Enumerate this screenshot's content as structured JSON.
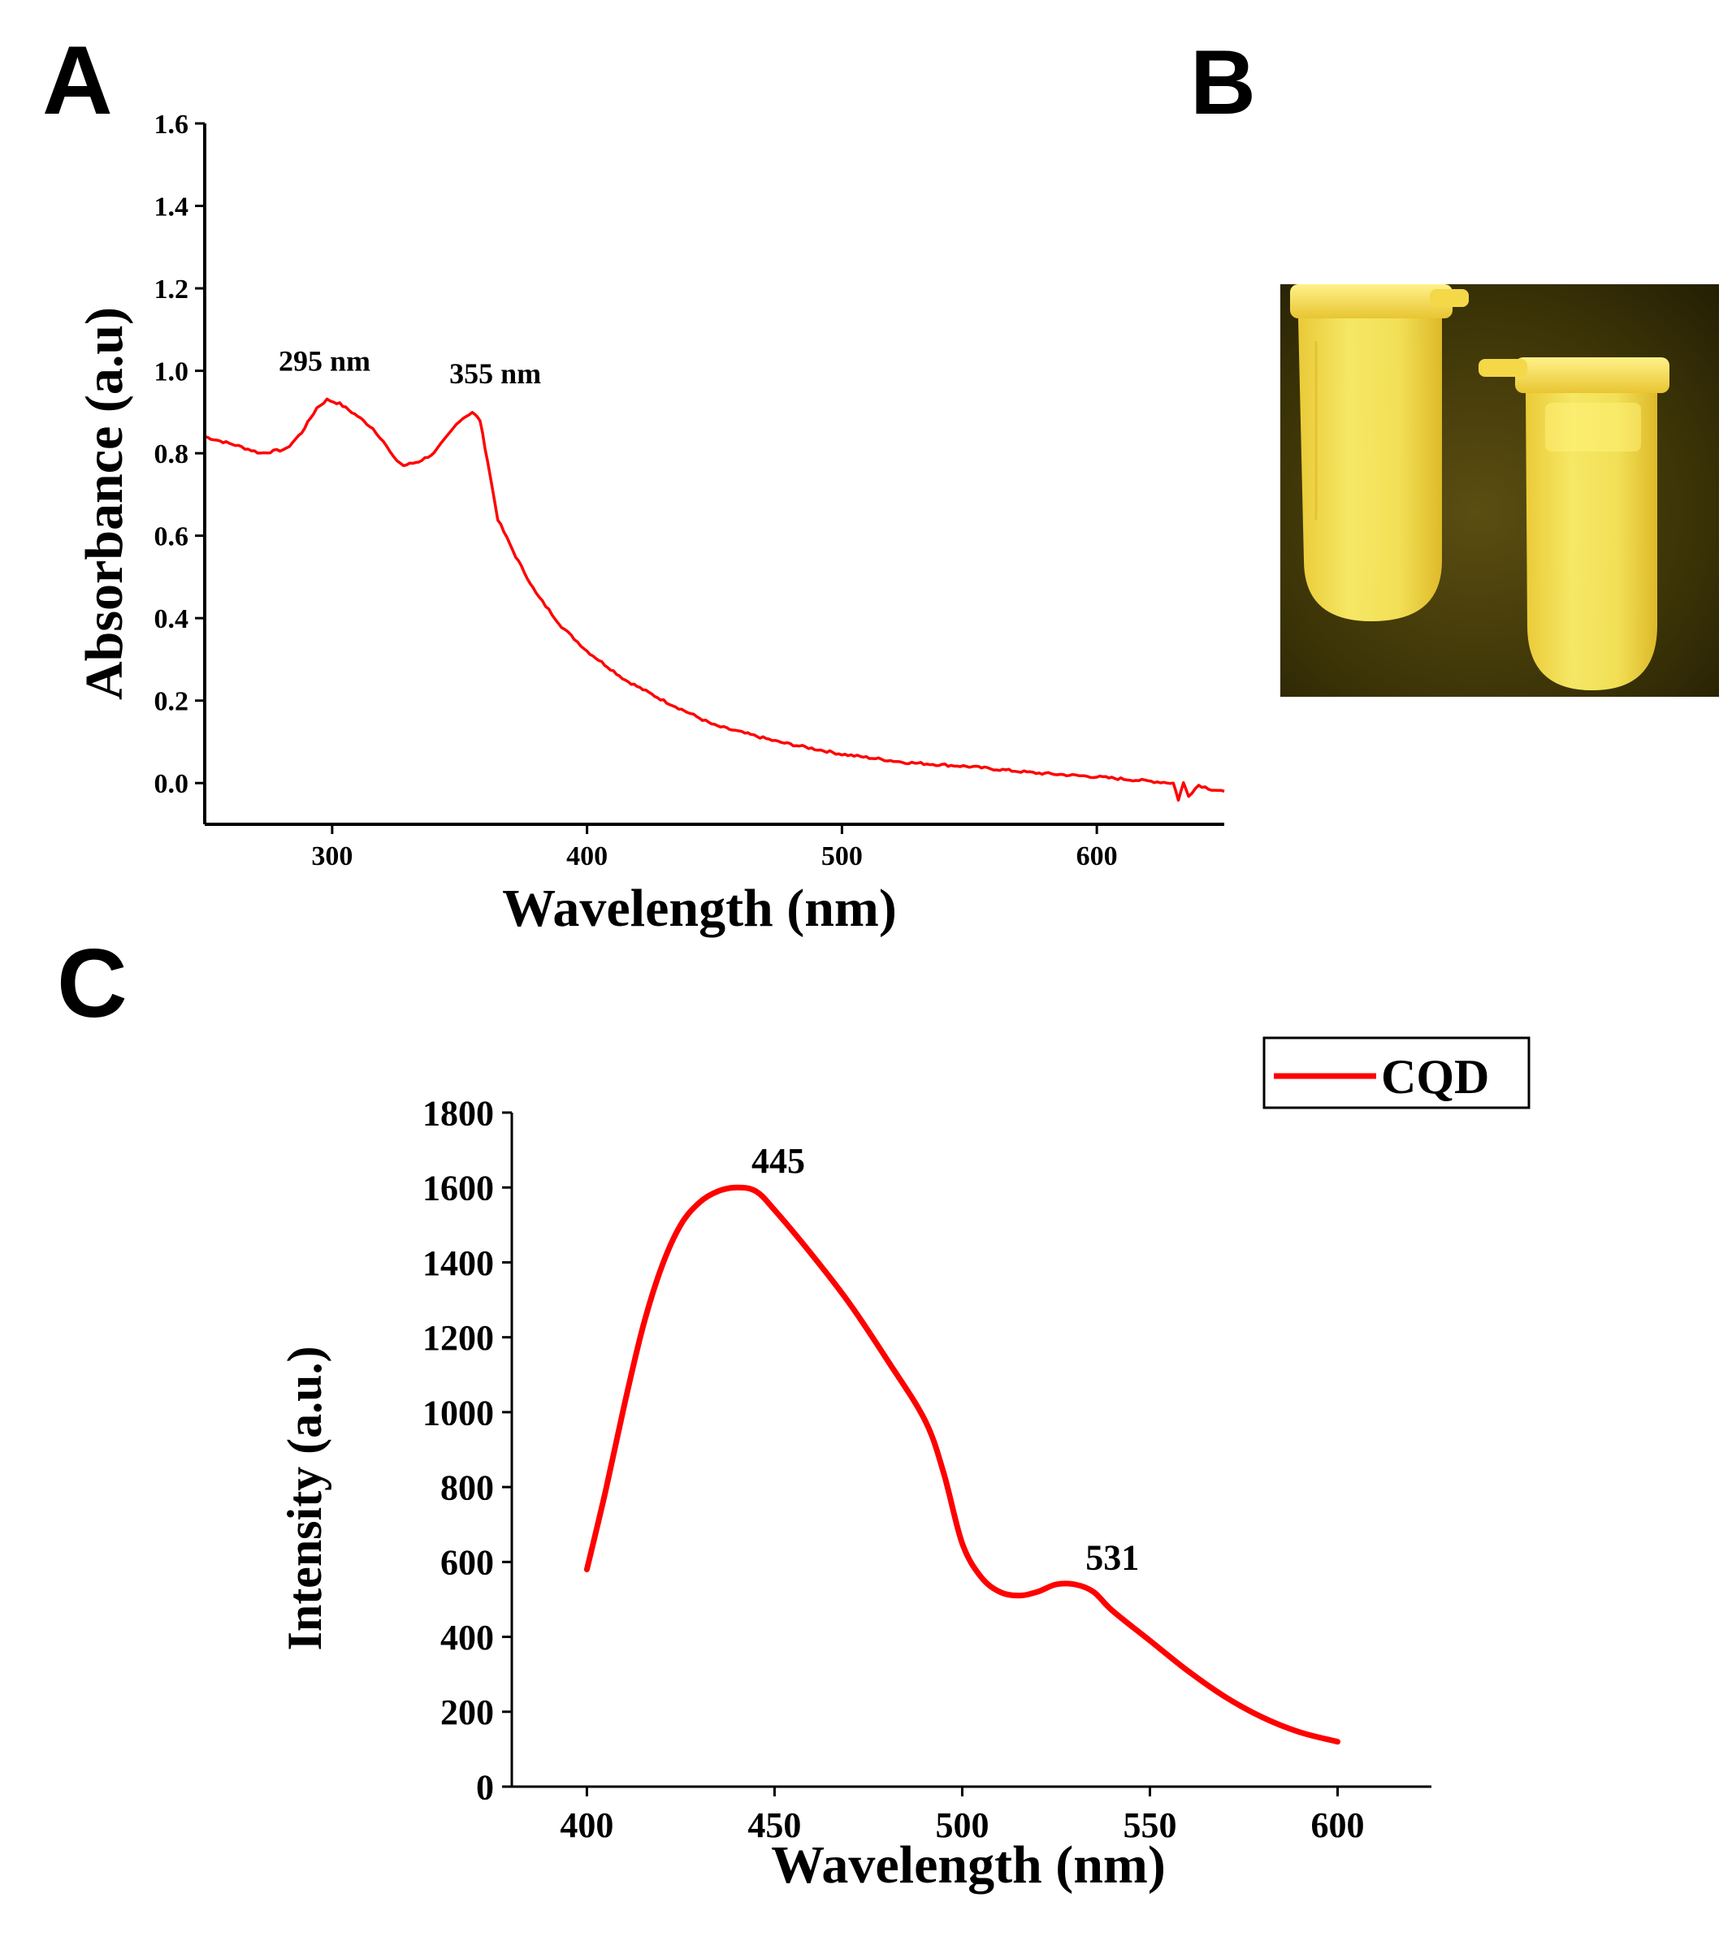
{
  "panels": {
    "a": "A",
    "b": "B",
    "c": "C"
  },
  "chart_data": [
    {
      "panel": "A",
      "type": "line",
      "xlabel": "Wavelength (nm)",
      "ylabel": "Absorbance (a.u)",
      "xlim": [
        250,
        650
      ],
      "ylim": [
        -0.1,
        1.6
      ],
      "xticks": [
        300,
        400,
        500,
        600
      ],
      "yticks": [
        0.0,
        0.2,
        0.4,
        0.6,
        0.8,
        1.0,
        1.2,
        1.4,
        1.6
      ],
      "ytick_labels": [
        "0.0",
        "0.2",
        "0.4",
        "0.6",
        "0.8",
        "1.0",
        "1.2",
        "1.4",
        "1.6"
      ],
      "grid": false,
      "color": "#ff0000",
      "annotations": [
        {
          "text": "295 nm",
          "x": 297,
          "y": 1.0
        },
        {
          "text": "355 nm",
          "x": 364,
          "y": 0.97
        }
      ],
      "series": [
        {
          "x": [
            250,
            262,
            272,
            282,
            288,
            294,
            298,
            303,
            310,
            316,
            320,
            324,
            328,
            334,
            340,
            345,
            350,
            355,
            358,
            361,
            365,
            372,
            380,
            390,
            400,
            415,
            430,
            450,
            475,
            500,
            525,
            550,
            575,
            600,
            620,
            630,
            632,
            634,
            636,
            640,
            645,
            650
          ],
          "y": [
            0.84,
            0.82,
            0.8,
            0.81,
            0.85,
            0.91,
            0.93,
            0.92,
            0.89,
            0.86,
            0.83,
            0.79,
            0.77,
            0.78,
            0.8,
            0.84,
            0.88,
            0.9,
            0.88,
            0.78,
            0.64,
            0.55,
            0.46,
            0.38,
            0.32,
            0.25,
            0.2,
            0.14,
            0.1,
            0.07,
            0.05,
            0.04,
            0.025,
            0.015,
            0.005,
            0.0,
            -0.04,
            0.0,
            -0.03,
            -0.005,
            -0.015,
            -0.02
          ]
        }
      ]
    },
    {
      "panel": "C",
      "type": "line",
      "xlabel": "Wavelength (nm)",
      "ylabel": "Intensity (a.u.)",
      "xlim": [
        380,
        625
      ],
      "ylim": [
        0,
        1800
      ],
      "xticks": [
        400,
        450,
        500,
        550,
        600
      ],
      "yticks": [
        0,
        200,
        400,
        600,
        800,
        1000,
        1200,
        1400,
        1600,
        1800
      ],
      "grid": false,
      "color": "#ff0000",
      "legend": {
        "position": "top-right",
        "entries": [
          "CQD"
        ]
      },
      "annotations": [
        {
          "text": "445",
          "x": 451,
          "y": 1640
        },
        {
          "text": "531",
          "x": 540,
          "y": 580
        }
      ],
      "series": [
        {
          "name": "CQD",
          "x": [
            400,
            405,
            410,
            415,
            420,
            425,
            430,
            435,
            440,
            445,
            450,
            460,
            470,
            480,
            490,
            495,
            500,
            505,
            510,
            515,
            520,
            525,
            530,
            535,
            540,
            550,
            560,
            570,
            580,
            590,
            600
          ],
          "y": [
            580,
            790,
            1020,
            1230,
            1390,
            1500,
            1560,
            1590,
            1600,
            1590,
            1540,
            1420,
            1290,
            1140,
            980,
            840,
            650,
            560,
            520,
            510,
            520,
            540,
            540,
            520,
            470,
            390,
            310,
            240,
            185,
            145,
            120
          ]
        }
      ]
    }
  ]
}
